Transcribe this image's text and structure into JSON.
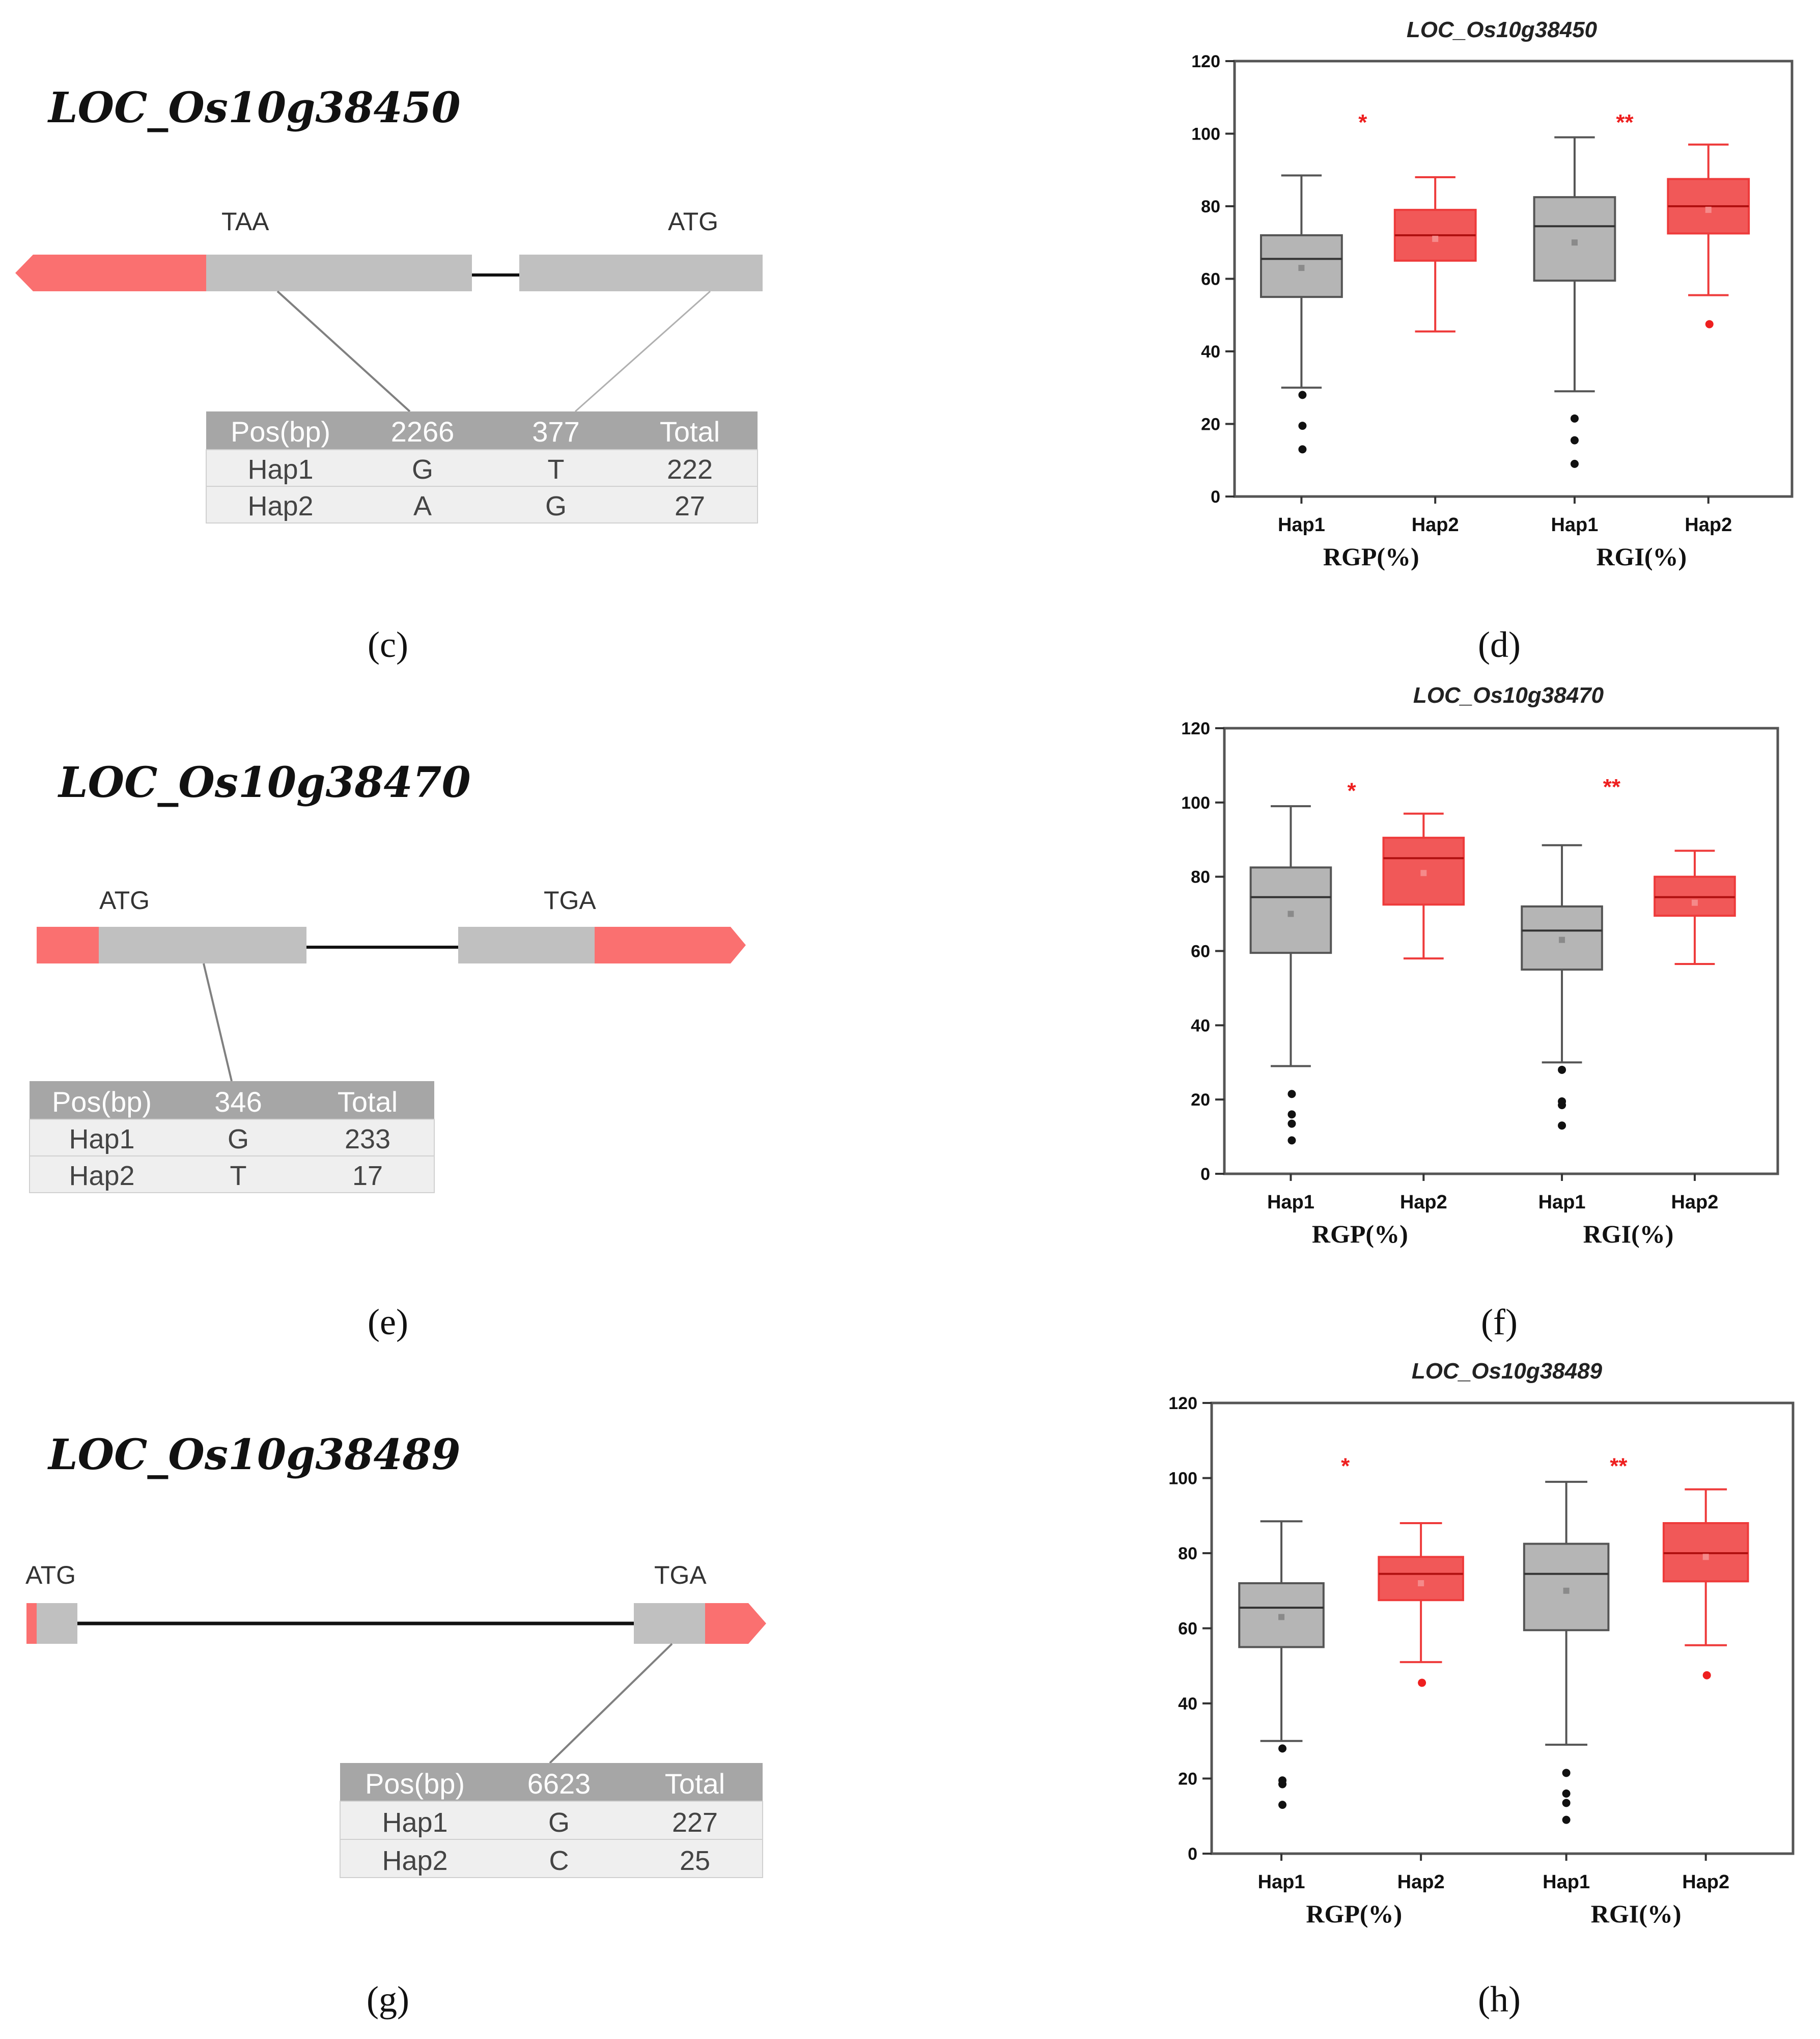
{
  "colors": {
    "utr": "#fa7070",
    "cds": "#c0c0c0",
    "intron": "#111111",
    "table_head": "#a6a6a6",
    "table_row": "#efefef",
    "hap1_box": "#9c9c9c",
    "hap1_line": "#555555",
    "hap2_box": "#ee3b3b",
    "hap2_line": "#ee3b3b",
    "outlier": "#111111",
    "significance": "#ee1f1f"
  },
  "genes": [
    {
      "id": "c",
      "title": "LOC_Os10g38450",
      "panel_label": "(c)",
      "markers": [
        "TAA",
        "ATG"
      ],
      "table": {
        "header": [
          "Pos(bp)",
          "2266",
          "377",
          "Total"
        ],
        "rows": [
          [
            "Hap1",
            "G",
            "T",
            "222"
          ],
          [
            "Hap2",
            "A",
            "G",
            "27"
          ]
        ]
      }
    },
    {
      "id": "e",
      "title": "LOC_Os10g38470",
      "panel_label": "(e)",
      "markers": [
        "ATG",
        "TGA"
      ],
      "table": {
        "header": [
          "Pos(bp)",
          "346",
          "Total"
        ],
        "rows": [
          [
            "Hap1",
            "G",
            "233"
          ],
          [
            "Hap2",
            "T",
            "17"
          ]
        ]
      }
    },
    {
      "id": "g",
      "title": "LOC_Os10g38489",
      "panel_label": "(g)",
      "markers": [
        "ATG",
        "TGA"
      ],
      "table": {
        "header": [
          "Pos(bp)",
          "6623",
          "Total"
        ],
        "rows": [
          [
            "Hap1",
            "G",
            "227"
          ],
          [
            "Hap2",
            "C",
            "25"
          ]
        ]
      }
    }
  ],
  "chart_data": [
    {
      "type": "box",
      "panel_label": "(d)",
      "title": "LOC_Os10g38450",
      "ylim": [
        0,
        120
      ],
      "yticks": [
        0,
        20,
        40,
        60,
        80,
        100,
        120
      ],
      "groups": [
        {
          "label": "RGP(%)",
          "significance": "*",
          "sig_y": 105
        },
        {
          "label": "RGI(%)",
          "significance": "**",
          "sig_y": 105
        }
      ],
      "boxes": [
        {
          "category": "Hap1",
          "group": 0,
          "hap": 1,
          "min": 30,
          "q1": 55,
          "median": 65.5,
          "q3": 72,
          "max": 88.5,
          "mean": 63,
          "outliers": [
            28,
            19.5,
            13
          ]
        },
        {
          "category": "Hap2",
          "group": 0,
          "hap": 2,
          "min": 45.5,
          "q1": 65,
          "median": 72,
          "q3": 79,
          "max": 88,
          "mean": 71,
          "outliers": []
        },
        {
          "category": "Hap1",
          "group": 1,
          "hap": 1,
          "min": 29,
          "q1": 59.5,
          "median": 74.5,
          "q3": 82.5,
          "max": 99,
          "mean": 70,
          "outliers": [
            21.5,
            15.5,
            9
          ]
        },
        {
          "category": "Hap2",
          "group": 1,
          "hap": 2,
          "min": 55.5,
          "q1": 72.5,
          "median": 80,
          "q3": 87.5,
          "max": 97,
          "mean": 79,
          "outliers": [
            47.5
          ]
        }
      ]
    },
    {
      "type": "box",
      "panel_label": "(f)",
      "title": "LOC_Os10g38470",
      "ylim": [
        0,
        120
      ],
      "yticks": [
        0,
        20,
        40,
        60,
        80,
        100,
        120
      ],
      "groups": [
        {
          "label": "RGP(%)",
          "significance": "*",
          "sig_y": 105
        },
        {
          "label": "RGI(%)",
          "significance": "**",
          "sig_y": 106
        }
      ],
      "boxes": [
        {
          "category": "Hap1",
          "group": 0,
          "hap": 1,
          "min": 29,
          "q1": 59.5,
          "median": 74.5,
          "q3": 82.5,
          "max": 99,
          "mean": 70,
          "outliers": [
            21.5,
            16,
            13.5,
            9
          ]
        },
        {
          "category": "Hap2",
          "group": 0,
          "hap": 2,
          "min": 58,
          "q1": 72.5,
          "median": 85,
          "q3": 90.5,
          "max": 97,
          "mean": 81,
          "outliers": []
        },
        {
          "category": "Hap1",
          "group": 1,
          "hap": 1,
          "min": 30,
          "q1": 55,
          "median": 65.5,
          "q3": 72,
          "max": 88.5,
          "mean": 63,
          "outliers": [
            28,
            19.5,
            18.5,
            13
          ]
        },
        {
          "category": "Hap2",
          "group": 1,
          "hap": 2,
          "min": 56.5,
          "q1": 69.5,
          "median": 74.5,
          "q3": 80,
          "max": 87,
          "mean": 73,
          "outliers": []
        }
      ]
    },
    {
      "type": "box",
      "panel_label": "(h)",
      "title": "LOC_Os10g38489",
      "ylim": [
        0,
        120
      ],
      "yticks": [
        0,
        20,
        40,
        60,
        80,
        100,
        120
      ],
      "groups": [
        {
          "label": "RGP(%)",
          "significance": "*",
          "sig_y": 105
        },
        {
          "label": "RGI(%)",
          "significance": "**",
          "sig_y": 105
        }
      ],
      "boxes": [
        {
          "category": "Hap1",
          "group": 0,
          "hap": 1,
          "min": 30,
          "q1": 55,
          "median": 65.5,
          "q3": 72,
          "max": 88.5,
          "mean": 63,
          "outliers": [
            28,
            19.5,
            18.5,
            13
          ]
        },
        {
          "category": "Hap2",
          "group": 0,
          "hap": 2,
          "min": 51,
          "q1": 67.5,
          "median": 74.5,
          "q3": 79,
          "max": 88,
          "mean": 72,
          "outliers": [
            45.5
          ]
        },
        {
          "category": "Hap1",
          "group": 1,
          "hap": 1,
          "min": 29,
          "q1": 59.5,
          "median": 74.5,
          "q3": 82.5,
          "max": 99,
          "mean": 70,
          "outliers": [
            21.5,
            16,
            13.5,
            9
          ]
        },
        {
          "category": "Hap2",
          "group": 1,
          "hap": 2,
          "min": 55.5,
          "q1": 72.5,
          "median": 80,
          "q3": 88,
          "max": 97,
          "mean": 79,
          "outliers": [
            47.5
          ]
        }
      ]
    }
  ]
}
